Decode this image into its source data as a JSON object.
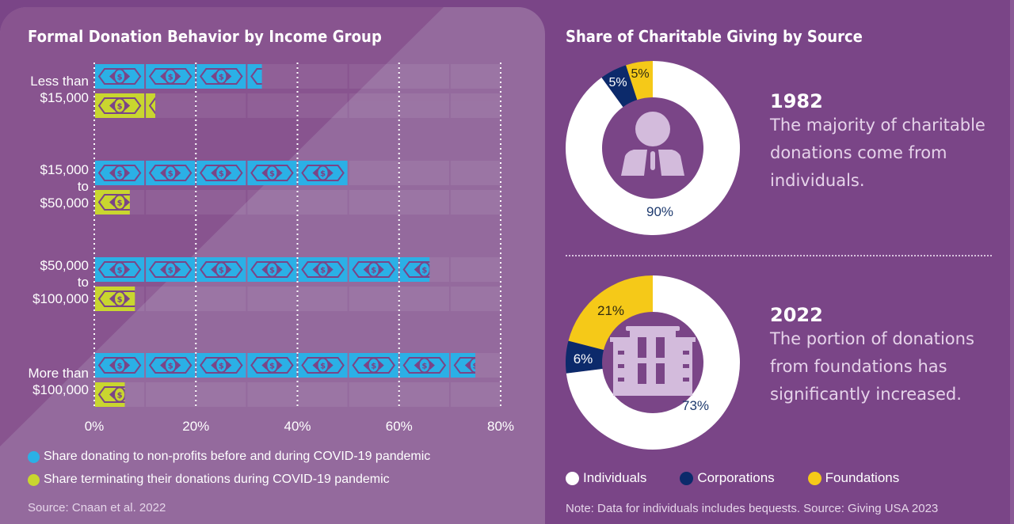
{
  "colors": {
    "blue": "#2bb0e6",
    "yellow_green": "#c9d62f",
    "navy": "#0c2a6b",
    "gold": "#f5c918",
    "white": "#ffffff",
    "icon_lilac": "#d3bbdc",
    "bg_purple": "#7a4587"
  },
  "left": {
    "title": "Formal Donation Behavior by Income Group",
    "source": "Source: Cnaan et al. 2022",
    "legend": [
      {
        "label": "Share donating to non-profits before and during COVID-19 pandemic",
        "color": "#2bb0e6",
        "icon": "banknote-icon"
      },
      {
        "label": "Share terminating their donations during COVID-19 pandemic",
        "color": "#c9d62f",
        "icon": "banknote-icon"
      }
    ]
  },
  "right": {
    "title": "Share of Charitable Giving by Source",
    "panels": [
      {
        "year": "1982",
        "caption": "The majority of charitable donations come from individuals.",
        "center_icon": "person-icon"
      },
      {
        "year": "2022",
        "caption": "The portion of donations from foundations has significantly increased.",
        "center_icon": "building-icon"
      }
    ],
    "legend": [
      {
        "label": "Individuals",
        "color": "#ffffff"
      },
      {
        "label": "Corporations",
        "color": "#0c2a6b"
      },
      {
        "label": "Foundations",
        "color": "#f5c918"
      }
    ],
    "note": "Note: Data for individuals includes bequests. Source: Giving USA 2023"
  },
  "chart_data": [
    {
      "type": "bar",
      "orientation": "horizontal",
      "title": "Formal Donation Behavior by Income Group",
      "categories": [
        "Less than $15,000",
        "$15,000 to $50,000",
        "$50,000 to $100,000",
        "More than $100,000"
      ],
      "category_lines": [
        [
          "Less than",
          "$15,000"
        ],
        [
          "$15,000",
          "to",
          "$50,000"
        ],
        [
          "$50,000",
          "to",
          "$100,000"
        ],
        [
          "More than",
          "$100,000"
        ]
      ],
      "series": [
        {
          "name": "Share donating to non-profits before and during COVID-19 pandemic",
          "values": [
            33,
            50,
            66,
            75
          ],
          "color": "#2bb0e6"
        },
        {
          "name": "Share terminating their donations during COVID-19 pandemic",
          "values": [
            12,
            7,
            8,
            6
          ],
          "color": "#c9d62f"
        }
      ],
      "unit": "%",
      "xlim": [
        0,
        80
      ],
      "x_ticks": [
        "0%",
        "20%",
        "40%",
        "60%",
        "80%"
      ],
      "x_tick_values": [
        0,
        20,
        40,
        60,
        80
      ],
      "grid": "vertical dotted",
      "legend_position": "bottom"
    },
    {
      "type": "pie",
      "variant": "donut",
      "title": "1982",
      "slices": [
        {
          "label": "Individuals",
          "value": 90,
          "color": "#ffffff",
          "value_label": "90%"
        },
        {
          "label": "Corporations",
          "value": 5,
          "color": "#0c2a6b",
          "value_label": "5%"
        },
        {
          "label": "Foundations",
          "value": 5,
          "color": "#f5c918",
          "value_label": "5%"
        }
      ]
    },
    {
      "type": "pie",
      "variant": "donut",
      "title": "2022",
      "slices": [
        {
          "label": "Individuals",
          "value": 73,
          "color": "#ffffff",
          "value_label": "73%"
        },
        {
          "label": "Corporations",
          "value": 6,
          "color": "#0c2a6b",
          "value_label": "6%"
        },
        {
          "label": "Foundations",
          "value": 21,
          "color": "#f5c918",
          "value_label": "21%"
        }
      ]
    }
  ]
}
